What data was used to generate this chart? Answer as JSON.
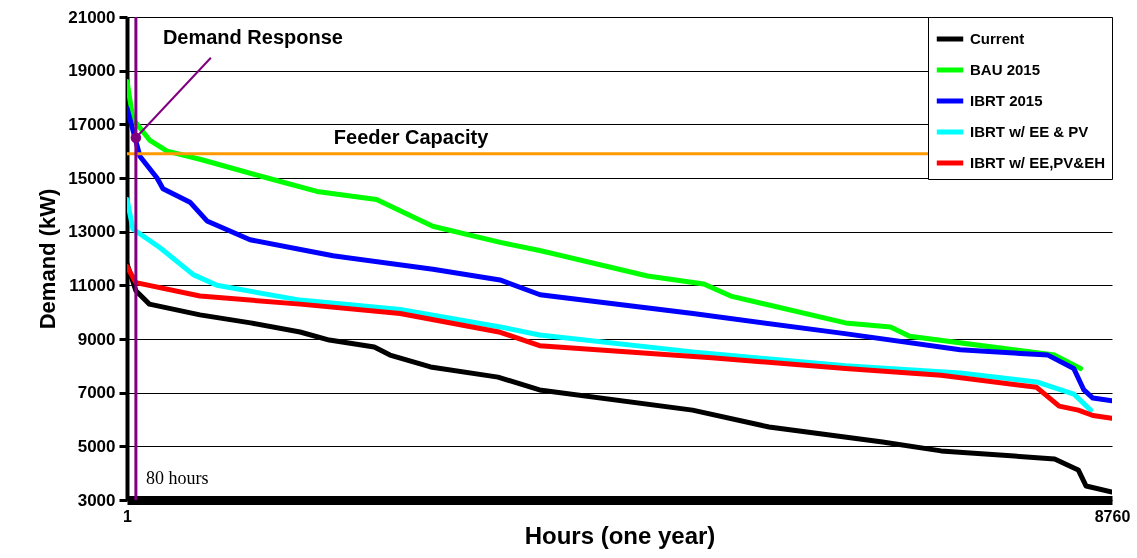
{
  "chart_data": {
    "type": "line",
    "xlabel": "Hours (one year)",
    "ylabel": "Demand (kW)",
    "xlim": [
      1,
      8760
    ],
    "xticks": [
      1,
      8760
    ],
    "ylim": [
      3000,
      21000
    ],
    "yticks": [
      3000,
      5000,
      7000,
      9000,
      11000,
      13000,
      15000,
      17000,
      19000,
      21000
    ],
    "grid": "y",
    "legend": "top right",
    "line_style": "solid",
    "marker": "none",
    "series": [
      {
        "name": "Current",
        "color": "#000000",
        "x": [
          1,
          80,
          200,
          650,
          1100,
          1540,
          1800,
          2200,
          2340,
          2700,
          3300,
          3670,
          5030,
          5710,
          6720,
          7240,
          8250,
          8460,
          8530,
          8760
        ],
        "values": [
          11800,
          10800,
          10300,
          9900,
          9600,
          9260,
          8960,
          8700,
          8400,
          7960,
          7580,
          7100,
          6350,
          5720,
          5160,
          4830,
          4530,
          4120,
          3520,
          3300
        ]
      },
      {
        "name": "BAU 2015",
        "color": "#00ff00",
        "x": [
          1,
          54,
          205,
          357,
          650,
          1250,
          1690,
          2220,
          2720,
          3320,
          3670,
          4630,
          5130,
          5370,
          6390,
          6790,
          6960,
          8250,
          8480
        ],
        "values": [
          18600,
          17200,
          16400,
          16000,
          15700,
          15000,
          14500,
          14200,
          13200,
          12600,
          12300,
          11350,
          11050,
          10600,
          9600,
          9450,
          9100,
          8400,
          7900
        ]
      },
      {
        "name": "IBRT 2015",
        "color": "#0000ff",
        "x": [
          1,
          117,
          268,
          321,
          561,
          712,
          1095,
          1833,
          2722,
          3318,
          3674,
          5034,
          6385,
          7410,
          8190,
          8420,
          8510,
          8590,
          8760
        ],
        "values": [
          17600,
          15800,
          15000,
          14600,
          14100,
          13400,
          12700,
          12100,
          11600,
          11200,
          10650,
          9950,
          9200,
          8600,
          8400,
          7900,
          7100,
          6800,
          6700
        ]
      },
      {
        "name": "IBRT w/ EE & PV",
        "color": "#00ffff",
        "x": [
          1,
          54,
          295,
          590,
          800,
          1540,
          2430,
          3320,
          3670,
          5030,
          6390,
          7410,
          8090,
          8420,
          8570
        ],
        "values": [
          14200,
          13100,
          12400,
          11400,
          11000,
          10450,
          10100,
          9450,
          9150,
          8520,
          8000,
          7730,
          7400,
          6950,
          6350
        ]
      },
      {
        "name": "IBRT w/ EE,PV&EH",
        "color": "#ff0000",
        "x": [
          1,
          80,
          650,
          1540,
          2430,
          3320,
          3670,
          5200,
          6390,
          7240,
          8090,
          8290,
          8460,
          8590,
          8760
        ],
        "values": [
          11700,
          11100,
          10600,
          10300,
          9950,
          9250,
          8750,
          8300,
          7900,
          7650,
          7200,
          6500,
          6350,
          6150,
          6050
        ]
      }
    ],
    "ref_lines": [
      {
        "axis": "y",
        "value": 15900,
        "label": "Feeder Capacity",
        "color": "#ff9900"
      },
      {
        "axis": "x",
        "value": 80,
        "label": "80 hours",
        "color": "#800080"
      }
    ],
    "annotations": [
      {
        "text": "Demand Response",
        "x": 80,
        "y": 16500
      }
    ]
  }
}
